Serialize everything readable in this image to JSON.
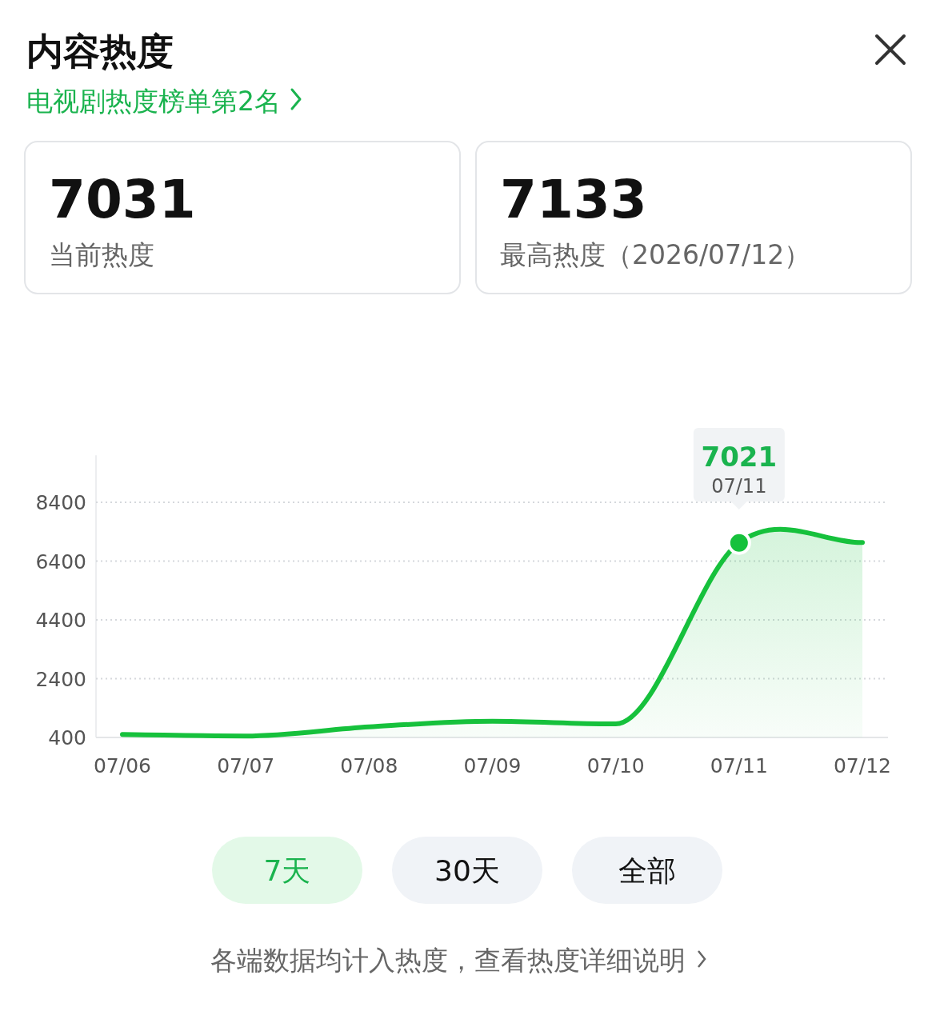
{
  "chart_data": {
    "type": "area",
    "title": "内容热度",
    "subtitle": "电视剧热度榜单第2名",
    "categories": [
      "07/06",
      "07/07",
      "07/08",
      "07/09",
      "07/10",
      "07/11",
      "07/12"
    ],
    "series": [
      {
        "color": "#16c13c",
        "values": [
          500,
          450,
          760,
          950,
          860,
          7021,
          7031
        ]
      }
    ],
    "ylim": [
      400,
      10000
    ],
    "yticks": [
      400,
      2400,
      4400,
      6400,
      8400
    ],
    "grid": "y",
    "marker": "none",
    "line_style": "solid",
    "annotations": [
      "7031",
      "当前热度",
      "7133",
      "最高热度（2026/07/12）",
      {
        "text": "7021",
        "x": "07/11",
        "y": 7021
      },
      {
        "text": "07/11",
        "x": "07/11",
        "y": 7021
      },
      "7天",
      "30天",
      "全部",
      "各端数据均计入热度，查看热度详细说明"
    ]
  }
}
